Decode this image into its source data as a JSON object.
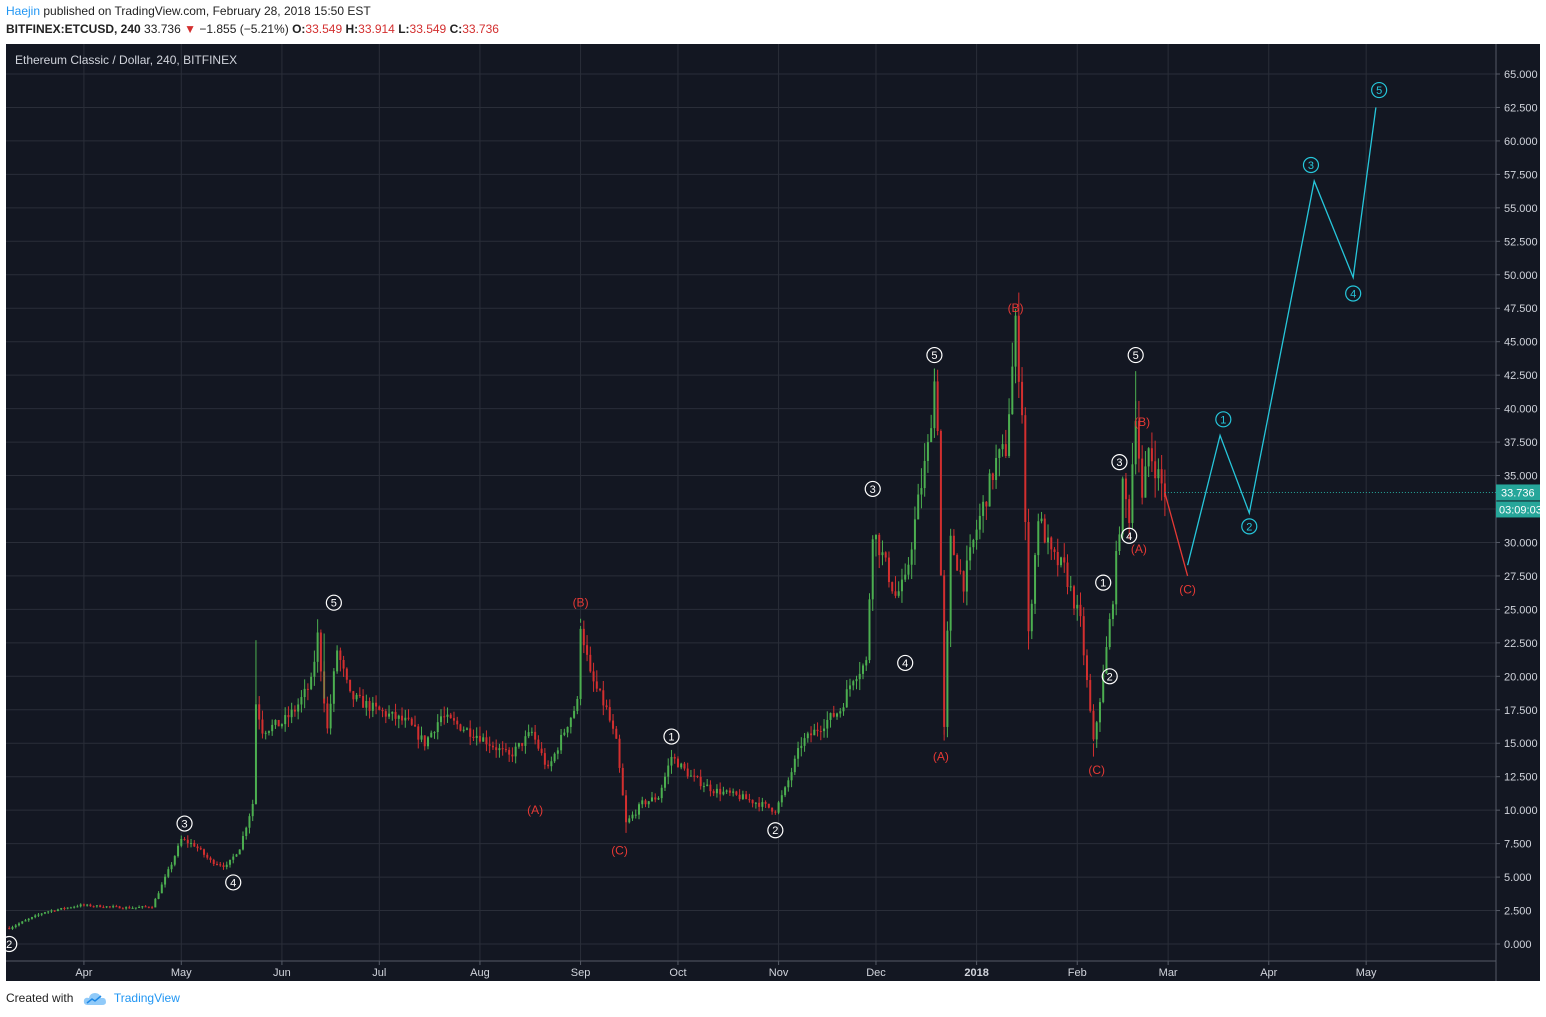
{
  "header": {
    "author": "Haejin",
    "published": "published on TradingView.com, February 28, 2018 15:50 EST",
    "symbol": "BITFINEX:ETCUSD, 240",
    "last": "33.736",
    "change": "−1.855 (−5.21%)",
    "o_label": "O:",
    "o": "33.549",
    "h_label": "H:",
    "h": "33.914",
    "l_label": "L:",
    "l": "33.549",
    "c_label": "C:",
    "c": "33.736"
  },
  "footer": {
    "created_with": "Created with",
    "brand": "TradingView",
    "icon": "tradingview-cloud-icon"
  },
  "colors": {
    "background": "#131722",
    "grid": "#2a2e39",
    "up": "#4caf50",
    "down": "#d32f2f",
    "projection": "#26c6da",
    "corrective": "#e53935",
    "impulse_label": "#ffffff",
    "price_tag": "#26a69a"
  },
  "chart_data": {
    "type": "candlestick",
    "title": "Ethereum Classic / Dollar, 240, BITFINEX",
    "ylim": [
      -1,
      66
    ],
    "y_ticks": [
      "65.000",
      "62.500",
      "60.000",
      "57.500",
      "55.000",
      "52.500",
      "50.000",
      "47.500",
      "45.000",
      "42.500",
      "40.000",
      "37.500",
      "35.000",
      "32.500",
      "30.000",
      "27.500",
      "25.000",
      "22.500",
      "20.000",
      "17.500",
      "15.000",
      "12.500",
      "10.000",
      "7.500",
      "5.000",
      "2.500",
      "0.000"
    ],
    "x_ticks": [
      {
        "label": "Apr",
        "date": "2017-04-01"
      },
      {
        "label": "May",
        "date": "2017-05-01"
      },
      {
        "label": "Jun",
        "date": "2017-06-01"
      },
      {
        "label": "Jul",
        "date": "2017-07-01"
      },
      {
        "label": "Aug",
        "date": "2017-08-01"
      },
      {
        "label": "Sep",
        "date": "2017-09-01"
      },
      {
        "label": "Oct",
        "date": "2017-10-01"
      },
      {
        "label": "Nov",
        "date": "2017-11-01"
      },
      {
        "label": "Dec",
        "date": "2017-12-01"
      },
      {
        "label": "2018",
        "date": "2018-01-01"
      },
      {
        "label": "Feb",
        "date": "2018-02-01"
      },
      {
        "label": "Mar",
        "date": "2018-03-01"
      },
      {
        "label": "Apr",
        "date": "2018-04-01"
      },
      {
        "label": "May",
        "date": "2018-05-01"
      }
    ],
    "price_path": [
      [
        "2017-03-09",
        1.2
      ],
      [
        "2017-03-20",
        2.4
      ],
      [
        "2017-03-31",
        2.9
      ],
      [
        "2017-04-15",
        2.7
      ],
      [
        "2017-04-22",
        2.8
      ],
      [
        "2017-04-28",
        6.0
      ],
      [
        "2017-05-01",
        7.8
      ],
      [
        "2017-05-05",
        7.4
      ],
      [
        "2017-05-10",
        6.2
      ],
      [
        "2017-05-15",
        5.8
      ],
      [
        "2017-05-19",
        7.2
      ],
      [
        "2017-05-23",
        10.5
      ],
      [
        "2017-05-24",
        18.0
      ],
      [
        "2017-05-26",
        16.0
      ],
      [
        "2017-06-01",
        16.5
      ],
      [
        "2017-06-05",
        17.5
      ],
      [
        "2017-06-10",
        19.5
      ],
      [
        "2017-06-12",
        23.0
      ],
      [
        "2017-06-15",
        16.0
      ],
      [
        "2017-06-18",
        22.0
      ],
      [
        "2017-06-22",
        18.5
      ],
      [
        "2017-06-30",
        17.5
      ],
      [
        "2017-07-10",
        16.5
      ],
      [
        "2017-07-15",
        15.0
      ],
      [
        "2017-07-20",
        17.0
      ],
      [
        "2017-08-01",
        15.5
      ],
      [
        "2017-08-10",
        14.0
      ],
      [
        "2017-08-17",
        15.8
      ],
      [
        "2017-08-22",
        13.0
      ],
      [
        "2017-08-28",
        16.5
      ],
      [
        "2017-08-31",
        18.0
      ],
      [
        "2017-09-01",
        24.0
      ],
      [
        "2017-09-04",
        20.0
      ],
      [
        "2017-09-09",
        17.5
      ],
      [
        "2017-09-12",
        15.0
      ],
      [
        "2017-09-15",
        9.0
      ],
      [
        "2017-09-20",
        10.5
      ],
      [
        "2017-09-25",
        11.0
      ],
      [
        "2017-09-29",
        14.0
      ],
      [
        "2017-10-05",
        12.5
      ],
      [
        "2017-10-12",
        11.5
      ],
      [
        "2017-10-20",
        11.0
      ],
      [
        "2017-10-26",
        10.5
      ],
      [
        "2017-10-31",
        10.0
      ],
      [
        "2017-11-03",
        11.5
      ],
      [
        "2017-11-08",
        15.0
      ],
      [
        "2017-11-15",
        16.5
      ],
      [
        "2017-11-20",
        17.5
      ],
      [
        "2017-11-24",
        20.0
      ],
      [
        "2017-11-28",
        21.0
      ],
      [
        "2017-11-30",
        31.0
      ],
      [
        "2017-12-03",
        29.0
      ],
      [
        "2017-12-07",
        26.0
      ],
      [
        "2017-12-10",
        27.0
      ],
      [
        "2017-12-14",
        33.0
      ],
      [
        "2017-12-17",
        37.0
      ],
      [
        "2017-12-19",
        42.0
      ],
      [
        "2017-12-20",
        39.0
      ],
      [
        "2017-12-22",
        16.0
      ],
      [
        "2017-12-24",
        30.0
      ],
      [
        "2017-12-28",
        27.0
      ],
      [
        "2018-01-01",
        31.0
      ],
      [
        "2018-01-07",
        36.0
      ],
      [
        "2018-01-10",
        37.0
      ],
      [
        "2018-01-13",
        46.0
      ],
      [
        "2018-01-15",
        40.0
      ],
      [
        "2018-01-17",
        23.0
      ],
      [
        "2018-01-20",
        32.0
      ],
      [
        "2018-01-24",
        29.0
      ],
      [
        "2018-01-28",
        28.0
      ],
      [
        "2018-02-02",
        24.0
      ],
      [
        "2018-02-06",
        15.0
      ],
      [
        "2018-02-09",
        20.0
      ],
      [
        "2018-02-12",
        26.0
      ],
      [
        "2018-02-15",
        34.0
      ],
      [
        "2018-02-17",
        32.0
      ],
      [
        "2018-02-19",
        40.0
      ],
      [
        "2018-02-21",
        33.0
      ],
      [
        "2018-02-23",
        37.0
      ],
      [
        "2018-02-26",
        35.0
      ],
      [
        "2018-02-28",
        33.7
      ]
    ],
    "projection_corrective": [
      [
        "2018-02-28",
        33.7
      ],
      [
        "2018-03-07",
        27.5
      ]
    ],
    "projection_impulse": [
      [
        "2018-03-07",
        28.3
      ],
      [
        "2018-03-17",
        38.0
      ],
      [
        "2018-03-26",
        32.2
      ],
      [
        "2018-04-15",
        57.0
      ],
      [
        "2018-04-27",
        49.8
      ],
      [
        "2018-05-04",
        62.5
      ]
    ],
    "wave_labels": [
      {
        "text": "2",
        "date": "2017-03-09",
        "price": 0.0,
        "style": "circle-white"
      },
      {
        "text": "3",
        "date": "2017-05-02",
        "price": 9.0,
        "style": "circle-white"
      },
      {
        "text": "4",
        "date": "2017-05-17",
        "price": 4.6,
        "style": "circle-white"
      },
      {
        "text": "5",
        "date": "2017-06-17",
        "price": 25.5,
        "style": "circle-white"
      },
      {
        "text": "(A)",
        "date": "2017-08-18",
        "price": 10.0,
        "style": "red"
      },
      {
        "text": "(B)",
        "date": "2017-09-01",
        "price": 25.5,
        "style": "red"
      },
      {
        "text": "(C)",
        "date": "2017-09-13",
        "price": 7.0,
        "style": "red"
      },
      {
        "text": "1",
        "date": "2017-09-29",
        "price": 15.5,
        "style": "circle-white"
      },
      {
        "text": "2",
        "date": "2017-10-31",
        "price": 8.5,
        "style": "circle-white"
      },
      {
        "text": "3",
        "date": "2017-11-30",
        "price": 34.0,
        "style": "circle-white"
      },
      {
        "text": "4",
        "date": "2017-12-10",
        "price": 21.0,
        "style": "circle-white"
      },
      {
        "text": "5",
        "date": "2017-12-19",
        "price": 44.0,
        "style": "circle-white"
      },
      {
        "text": "(A)",
        "date": "2017-12-21",
        "price": 14.0,
        "style": "red"
      },
      {
        "text": "(B)",
        "date": "2018-01-13",
        "price": 47.5,
        "style": "red"
      },
      {
        "text": "(C)",
        "date": "2018-02-07",
        "price": 13.0,
        "style": "red"
      },
      {
        "text": "1",
        "date": "2018-02-09",
        "price": 27.0,
        "style": "circle-white"
      },
      {
        "text": "2",
        "date": "2018-02-11",
        "price": 20.0,
        "style": "circle-white"
      },
      {
        "text": "3",
        "date": "2018-02-14",
        "price": 36.0,
        "style": "circle-white"
      },
      {
        "text": "4",
        "date": "2018-02-17",
        "price": 30.5,
        "style": "circle-white"
      },
      {
        "text": "5",
        "date": "2018-02-19",
        "price": 44.0,
        "style": "circle-white"
      },
      {
        "text": "(B)",
        "date": "2018-02-21",
        "price": 39.0,
        "style": "red"
      },
      {
        "text": "(A)",
        "date": "2018-02-20",
        "price": 29.5,
        "style": "red"
      },
      {
        "text": "(C)",
        "date": "2018-03-07",
        "price": 26.5,
        "style": "red"
      },
      {
        "text": "1",
        "date": "2018-03-18",
        "price": 39.2,
        "style": "circle-cyan"
      },
      {
        "text": "2",
        "date": "2018-03-26",
        "price": 31.2,
        "style": "circle-cyan"
      },
      {
        "text": "3",
        "date": "2018-04-14",
        "price": 58.2,
        "style": "circle-cyan"
      },
      {
        "text": "4",
        "date": "2018-04-27",
        "price": 48.6,
        "style": "circle-cyan"
      },
      {
        "text": "5",
        "date": "2018-05-05",
        "price": 63.8,
        "style": "circle-cyan"
      }
    ],
    "last_price": "33.736",
    "countdown": "03:09:03"
  }
}
